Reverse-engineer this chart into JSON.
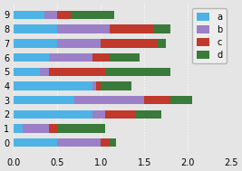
{
  "categories": [
    0,
    1,
    2,
    3,
    4,
    5,
    6,
    7,
    8,
    9
  ],
  "a": [
    0.5,
    0.1,
    0.9,
    0.7,
    0.9,
    0.3,
    0.4,
    0.5,
    0.5,
    0.35
  ],
  "b": [
    0.5,
    0.3,
    0.15,
    0.8,
    0.05,
    0.1,
    0.5,
    0.5,
    0.6,
    0.15
  ],
  "c": [
    0.1,
    0.1,
    0.35,
    0.3,
    0.05,
    0.65,
    0.2,
    0.65,
    0.5,
    0.15
  ],
  "d": [
    0.07,
    0.55,
    0.3,
    0.25,
    0.35,
    0.75,
    0.35,
    0.1,
    0.2,
    0.5
  ],
  "colors": [
    "#4db3e6",
    "#9b7fc7",
    "#c0392b",
    "#3a7a3a"
  ],
  "xlim": [
    0.0,
    2.5
  ],
  "xticks": [
    0.0,
    0.5,
    1.0,
    1.5,
    2.0,
    2.5
  ],
  "yticks": [
    0,
    1,
    2,
    3,
    4,
    5,
    6,
    7,
    8,
    9
  ],
  "legend_labels": [
    "a",
    "b",
    "c",
    "d"
  ],
  "bg_color": "#e5e5e5",
  "grid_color": "#ffffff"
}
